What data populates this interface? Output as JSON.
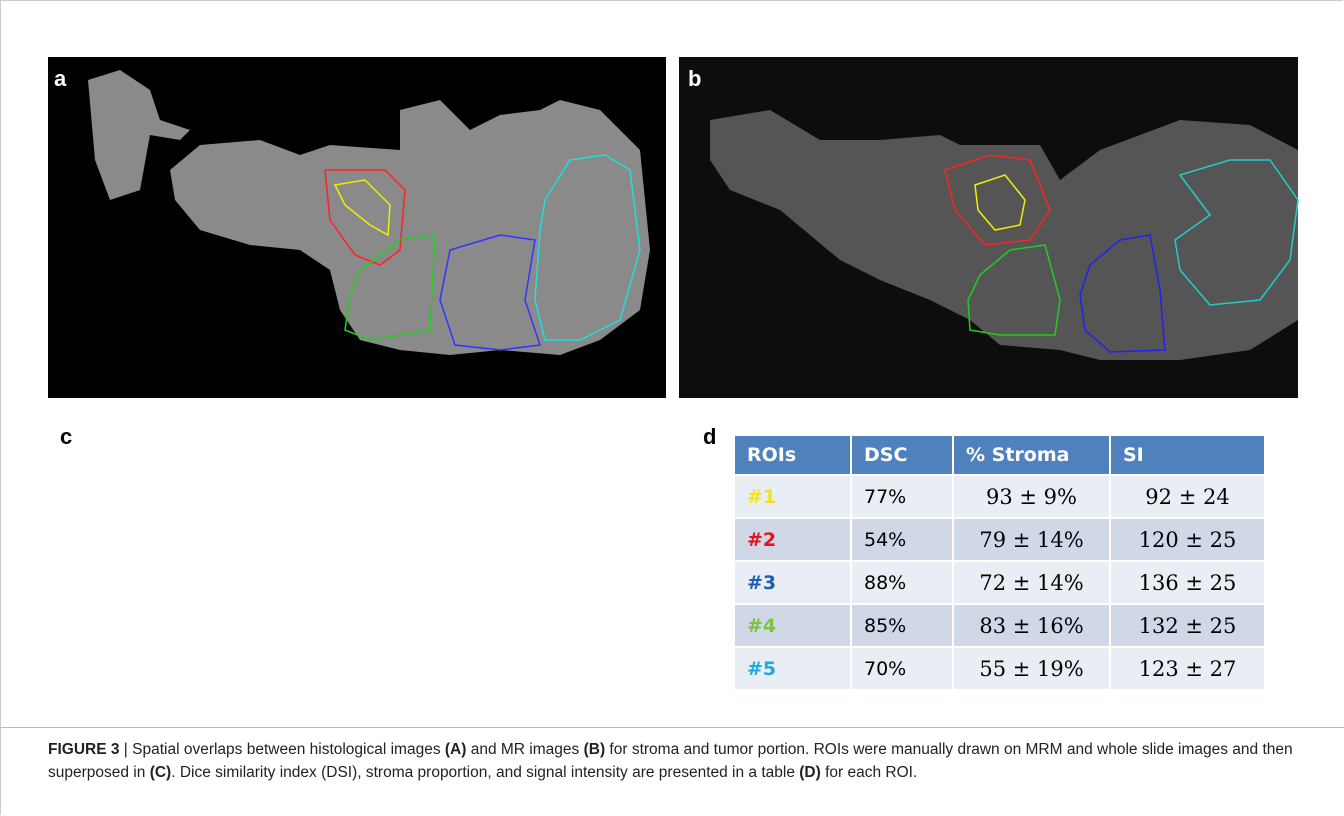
{
  "panels": {
    "a": "a",
    "b": "b",
    "c": "c",
    "d": "d"
  },
  "table": {
    "header": [
      "ROIs",
      "DSC",
      "% Stroma",
      "SI"
    ],
    "rows": [
      [
        "#1",
        "77%",
        "93 ± 9%",
        "92 ± 24"
      ],
      [
        "#2",
        "54%",
        "79 ± 14%",
        "120 ± 25"
      ],
      [
        "#3",
        "88%",
        "72 ± 14%",
        "136 ± 25"
      ],
      [
        "#4",
        "85%",
        "83 ± 16%",
        "132 ± 25"
      ],
      [
        "#5",
        "70%",
        "55 ± 19%",
        "123 ± 27"
      ]
    ]
  },
  "caption": {
    "label": "FIGURE 3",
    "segments": [
      " | Spatial overlaps between histological images ",
      "(A)",
      " and MR images ",
      "(B)",
      " for stroma and tumor portion. ROIs were manually drawn on MRM and whole slide images and then superposed in ",
      "(C)",
      ". Dice similarity index (DSI), stroma proportion, and signal intensity are presented in a table ",
      "(D)",
      " for each ROI."
    ]
  }
}
